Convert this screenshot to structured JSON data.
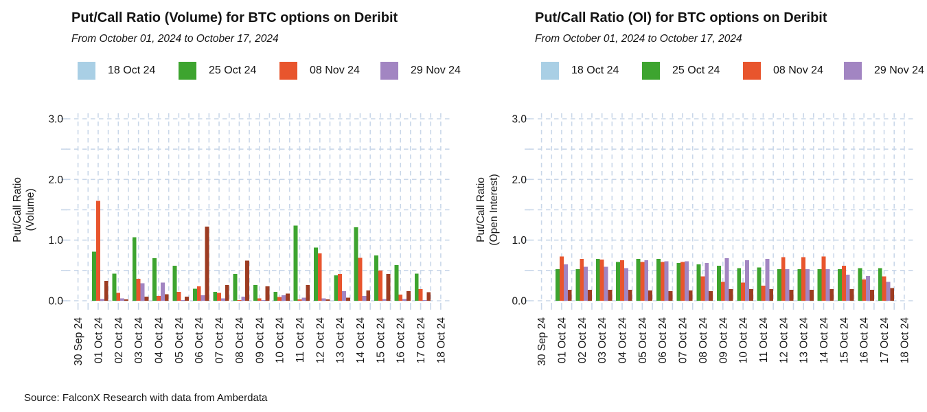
{
  "figure": {
    "background": "#ffffff",
    "text_color": "#141414",
    "grid_color": "#c9d7e9",
    "note": "two bar charts side by side; legend clipped at right edge of each panel; a fifth (dark rust) bar series is visible in the plots but its legend entry is cut off outside the visible area"
  },
  "source_note": "Source: FalconX Research with data from Amberdata",
  "chart_data": [
    {
      "type": "bar",
      "title": "Put/Call Ratio (Volume) for BTC options on Deribit",
      "subtitle": "From October 01, 2024 to October 17, 2024",
      "ylabel_line1": "Put/Call Ratio",
      "ylabel_line2": "(Volume)",
      "ylim": [
        0,
        3
      ],
      "grid": "dashed light-blue, horizontal every 0.5, vertical every half day",
      "legend_position": "top",
      "y_tick_labels": [
        "0.0",
        "1.0",
        "2.0",
        "3.0"
      ],
      "x_tick_labels": [
        "30 Sep 24",
        "01 Oct 24",
        "02 Oct 24",
        "03 Oct 24",
        "04 Oct 24",
        "05 Oct 24",
        "06 Oct 24",
        "07 Oct 24",
        "08 Oct 24",
        "09 Oct 24",
        "10 Oct 24",
        "11 Oct 24",
        "12 Oct 24",
        "13 Oct 24",
        "14 Oct 24",
        "15 Oct 24",
        "16 Oct 24",
        "17 Oct 24",
        "18 Oct 24"
      ],
      "categories": [
        "01 Oct 24",
        "02 Oct 24",
        "03 Oct 24",
        "04 Oct 24",
        "05 Oct 24",
        "06 Oct 24",
        "07 Oct 24",
        "08 Oct 24",
        "09 Oct 24",
        "10 Oct 24",
        "11 Oct 24",
        "12 Oct 24",
        "13 Oct 24",
        "14 Oct 24",
        "15 Oct 24",
        "16 Oct 24",
        "17 Oct 24"
      ],
      "legend_items": [
        {
          "label": "18 Oct 24",
          "color": "#a9cfe5"
        },
        {
          "label": "25 Oct 24",
          "color": "#3da42f"
        },
        {
          "label": "08 Nov 24",
          "color": "#e8552d"
        },
        {
          "label": "29 Nov 24",
          "color": "#a285c2"
        }
      ],
      "series": [
        {
          "name": "18 Oct 24",
          "color": "#a9cfe5",
          "values": [
            0,
            0,
            0,
            0,
            0,
            0,
            0,
            0,
            0,
            0,
            0,
            0,
            0,
            0,
            0,
            0,
            0
          ]
        },
        {
          "name": "25 Oct 24",
          "color": "#3da42f",
          "values": [
            0.81,
            0.45,
            1.05,
            0.7,
            0.58,
            0.2,
            0.15,
            0.44,
            0.26,
            0.15,
            1.24,
            0.88,
            0.42,
            1.21,
            0.75,
            0.59,
            0.45
          ]
        },
        {
          "name": "08 Nov 24",
          "color": "#e8552d",
          "values": [
            1.65,
            0.13,
            0.36,
            0.08,
            0.15,
            0.24,
            0.13,
            0.01,
            0.04,
            0.06,
            0.02,
            0.78,
            0.44,
            0.71,
            0.5,
            0.1,
            0.19
          ]
        },
        {
          "name": "29 Nov 24",
          "color": "#a285c2",
          "values": [
            0.03,
            0.04,
            0.29,
            0.3,
            0.01,
            0.09,
            0.04,
            0.07,
            0.01,
            0.09,
            0.05,
            0.04,
            0.16,
            0.08,
            0.03,
            0.03,
            0.01
          ]
        },
        {
          "name": "",
          "color": "#9d3c22",
          "values": [
            0.33,
            0.02,
            0.07,
            0.11,
            0.07,
            1.22,
            0.26,
            0.66,
            0.24,
            0.12,
            0.26,
            0.02,
            0.05,
            0.17,
            0.44,
            0.16,
            0.14
          ]
        }
      ]
    },
    {
      "type": "bar",
      "title": "Put/Call Ratio (OI) for BTC options on Deribit",
      "subtitle": "From October 01, 2024 to October 17, 2024",
      "ylabel_line1": "Put/Call Ratio",
      "ylabel_line2": "(Open Interest)",
      "ylim": [
        0,
        3
      ],
      "grid": "dashed light-blue, horizontal every 0.5, vertical every half day",
      "legend_position": "top",
      "y_tick_labels": [
        "0.0",
        "1.0",
        "2.0",
        "3.0"
      ],
      "x_tick_labels": [
        "30 Sep 24",
        "01 Oct 24",
        "02 Oct 24",
        "03 Oct 24",
        "04 Oct 24",
        "05 Oct 24",
        "06 Oct 24",
        "07 Oct 24",
        "08 Oct 24",
        "09 Oct 24",
        "10 Oct 24",
        "11 Oct 24",
        "12 Oct 24",
        "13 Oct 24",
        "14 Oct 24",
        "15 Oct 24",
        "16 Oct 24",
        "17 Oct 24",
        "18 Oct 24"
      ],
      "categories": [
        "01 Oct 24",
        "02 Oct 24",
        "03 Oct 24",
        "04 Oct 24",
        "05 Oct 24",
        "06 Oct 24",
        "07 Oct 24",
        "08 Oct 24",
        "09 Oct 24",
        "10 Oct 24",
        "11 Oct 24",
        "12 Oct 24",
        "13 Oct 24",
        "14 Oct 24",
        "15 Oct 24",
        "16 Oct 24",
        "17 Oct 24"
      ],
      "legend_items": [
        {
          "label": "18 Oct 24",
          "color": "#a9cfe5"
        },
        {
          "label": "25 Oct 24",
          "color": "#3da42f"
        },
        {
          "label": "08 Nov 24",
          "color": "#e8552d"
        },
        {
          "label": "29 Nov 24",
          "color": "#a285c2"
        }
      ],
      "series": [
        {
          "name": "18 Oct 24",
          "color": "#a9cfe5",
          "values": [
            0,
            0,
            0,
            0,
            0,
            0,
            0,
            0,
            0,
            0,
            0,
            0,
            0,
            0,
            0,
            0,
            0
          ]
        },
        {
          "name": "25 Oct 24",
          "color": "#3da42f",
          "values": [
            0.52,
            0.52,
            0.69,
            0.64,
            0.69,
            0.69,
            0.62,
            0.6,
            0.58,
            0.54,
            0.55,
            0.52,
            0.52,
            0.52,
            0.52,
            0.54,
            0.54
          ]
        },
        {
          "name": "08 Nov 24",
          "color": "#e8552d",
          "values": [
            0.73,
            0.69,
            0.68,
            0.67,
            0.64,
            0.64,
            0.64,
            0.4,
            0.31,
            0.3,
            0.25,
            0.72,
            0.72,
            0.73,
            0.58,
            0.35,
            0.4
          ]
        },
        {
          "name": "29 Nov 24",
          "color": "#a285c2",
          "values": [
            0.6,
            0.56,
            0.56,
            0.54,
            0.67,
            0.65,
            0.65,
            0.62,
            0.7,
            0.67,
            0.69,
            0.52,
            0.52,
            0.52,
            0.43,
            0.41,
            0.31
          ]
        },
        {
          "name": "",
          "color": "#9d3c22",
          "values": [
            0.18,
            0.18,
            0.18,
            0.18,
            0.17,
            0.16,
            0.17,
            0.16,
            0.19,
            0.19,
            0.19,
            0.18,
            0.18,
            0.19,
            0.19,
            0.18,
            0.21
          ]
        }
      ]
    }
  ]
}
